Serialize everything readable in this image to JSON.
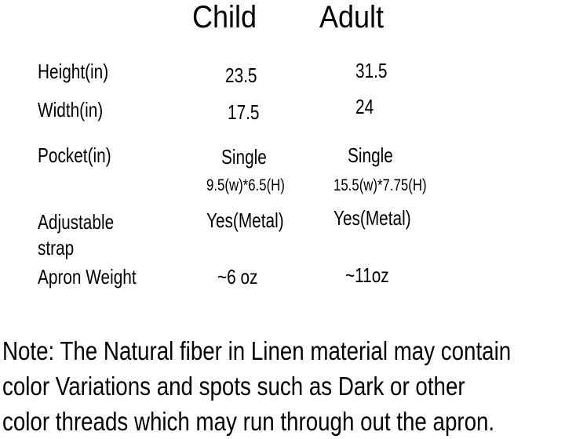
{
  "colors": {
    "background": "#ffffff",
    "text": "#000000"
  },
  "table": {
    "header": {
      "child": "Child",
      "adult": "Adult"
    },
    "rows": {
      "height": {
        "label": "Height(in)",
        "child": "23.5",
        "adult": "31.5"
      },
      "width": {
        "label": "Width(in)",
        "child": "17.5",
        "adult": "24"
      },
      "pocket": {
        "label": "Pocket(in)",
        "child": "Single",
        "adult": "Single"
      },
      "pocket_dims": {
        "child": "9.5(w)*6.5(H)",
        "adult": "15.5(w)*7.75(H)"
      },
      "strap": {
        "label": "Adjustable strap",
        "child": "Yes(Metal)",
        "adult": "Yes(Metal)"
      },
      "weight": {
        "label": "Apron Weight",
        "child": "~6 oz",
        "adult": "~11oz"
      }
    }
  },
  "note": {
    "lines": [
      "Note: The Natural fiber in Linen material may contain",
      "color Variations and spots such as Dark or other",
      "color threads which may run through out the apron."
    ]
  },
  "chart_data": {
    "type": "table",
    "title": "Apron size chart: Child vs Adult",
    "columns": [
      "",
      "Child",
      "Adult"
    ],
    "rows": [
      [
        "Height(in)",
        "23.5",
        "31.5"
      ],
      [
        "Width(in)",
        "17.5",
        "24"
      ],
      [
        "Pocket(in)",
        "Single 9.5(w)*6.5(H)",
        "Single 15.5(w)*7.75(H)"
      ],
      [
        "Adjustable strap",
        "Yes(Metal)",
        "Yes(Metal)"
      ],
      [
        "Apron Weight",
        "~6 oz",
        "~11oz"
      ]
    ],
    "note": "Note: The Natural fiber in Linen material may contain color Variations and spots such as Dark or other color threads which may run through out the apron."
  }
}
